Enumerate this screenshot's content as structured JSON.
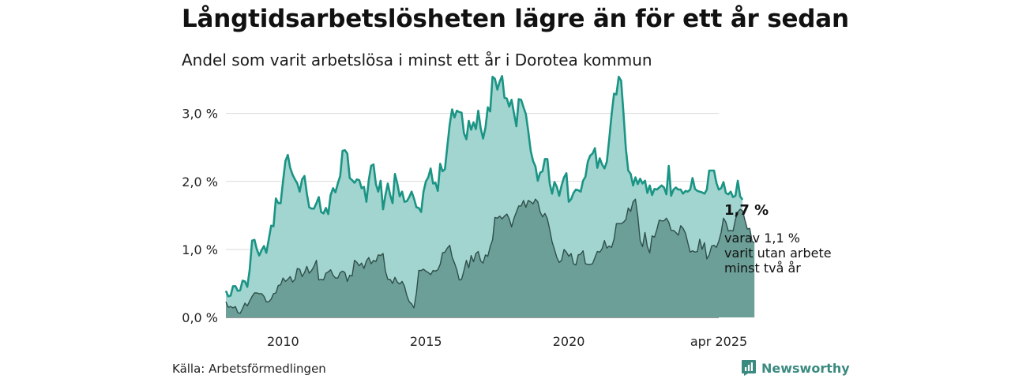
{
  "header": {
    "title": "Långtidsarbetslösheten lägre än för ett år sedan",
    "subtitle": "Andel som varit arbetslösa i minst ett år i Dorotea kommun"
  },
  "footer": {
    "source": "Källa: Arbetsförmedlingen",
    "brand": "Newsworthy",
    "brand_icon": "newsworthy-logo-icon"
  },
  "labels": {
    "latest_value": "1,7 %",
    "sub_line1": "varav 1,1 %",
    "sub_line2": "varit utan arbete",
    "sub_line3": "minst två år"
  },
  "colors": {
    "area_light": "#a3d5d0",
    "line_light": "#1a9484",
    "area_dark": "#6b9f97",
    "line_dark": "#2f4f4a",
    "grid": "#d9d9d9",
    "brand": "#3b8a80"
  },
  "chart_data": {
    "type": "area",
    "x_start": "2008-01",
    "x_end": "2025-04",
    "x_frequency": "monthly",
    "ylim": [
      0,
      3.6
    ],
    "yticks": [
      0,
      1,
      2,
      3
    ],
    "ytick_labels": [
      "0,0 %",
      "1,0 %",
      "2,0 %",
      "3,0 %"
    ],
    "xticks": [
      "2010",
      "2015",
      "2020",
      "apr 2025"
    ],
    "xtick_dates": [
      "2010-01",
      "2015-01",
      "2020-01",
      "2025-04"
    ],
    "grid": true,
    "series": [
      {
        "id": "minst-ett-ar",
        "values": [
          0.39,
          0.31,
          0.32,
          0.46,
          0.46,
          0.39,
          0.4,
          0.54,
          0.53,
          0.45,
          0.7,
          1.13,
          1.14,
          1.0,
          0.91,
          0.99,
          1.05,
          0.95,
          1.15,
          1.35,
          1.34,
          1.75,
          1.68,
          1.68,
          2.0,
          2.3,
          2.39,
          2.2,
          2.1,
          2.03,
          1.97,
          1.85,
          2.03,
          2.08,
          1.82,
          1.62,
          1.6,
          1.6,
          1.68,
          1.77,
          1.55,
          1.53,
          1.61,
          1.52,
          1.8,
          1.9,
          1.84,
          1.97,
          2.08,
          2.45,
          2.46,
          2.41,
          2.05,
          2.02,
          1.98,
          2.03,
          2.02,
          1.9,
          1.92,
          1.7,
          2.02,
          2.23,
          2.25,
          1.96,
          1.85,
          2.01,
          1.59,
          1.8,
          1.97,
          1.8,
          1.68,
          2.11,
          1.97,
          1.78,
          1.85,
          1.7,
          1.71,
          1.77,
          1.85,
          1.75,
          1.62,
          1.61,
          1.55,
          1.85,
          2.0,
          2.06,
          2.19,
          1.97,
          1.98,
          1.86,
          2.26,
          2.15,
          2.18,
          2.51,
          2.84,
          3.06,
          2.94,
          3.04,
          3.02,
          3.01,
          2.71,
          2.62,
          2.89,
          2.76,
          2.87,
          2.77,
          3.04,
          2.78,
          2.63,
          2.79,
          3.09,
          3.03,
          3.54,
          3.51,
          3.35,
          3.47,
          3.55,
          3.23,
          3.22,
          3.1,
          3.2,
          3.0,
          2.81,
          3.21,
          3.2,
          3.09,
          2.99,
          2.74,
          2.45,
          2.3,
          2.22,
          2.01,
          2.13,
          2.15,
          2.33,
          2.33,
          1.97,
          1.82,
          1.99,
          1.92,
          1.79,
          1.94,
          2.06,
          2.12,
          1.7,
          1.74,
          1.83,
          1.88,
          1.87,
          1.85,
          2.01,
          2.07,
          2.29,
          2.38,
          2.41,
          2.49,
          2.2,
          2.34,
          2.25,
          2.19,
          2.29,
          2.62,
          2.98,
          3.29,
          3.28,
          3.54,
          3.48,
          3.0,
          2.48,
          2.16,
          2.11,
          1.94,
          2.06,
          1.96,
          2.04,
          1.97,
          2.01,
          1.83,
          1.94,
          1.8,
          1.89,
          1.88,
          1.91,
          1.94,
          1.91,
          1.81,
          2.23,
          1.79,
          1.88,
          1.91,
          1.88,
          1.88,
          1.82,
          1.86,
          1.85,
          1.88,
          2.05,
          1.89,
          1.86,
          1.85,
          1.84,
          1.82,
          1.88,
          2.16,
          2.16,
          2.16,
          1.98,
          1.88,
          1.9,
          1.99,
          1.83,
          1.81,
          1.85,
          1.77,
          1.79,
          2.01,
          1.78,
          1.73
        ]
      },
      {
        "id": "minst-tva-ar",
        "values": [
          0.23,
          0.15,
          0.16,
          0.14,
          0.16,
          0.07,
          0.06,
          0.13,
          0.21,
          0.17,
          0.24,
          0.31,
          0.36,
          0.36,
          0.35,
          0.35,
          0.31,
          0.23,
          0.23,
          0.27,
          0.35,
          0.36,
          0.47,
          0.48,
          0.58,
          0.53,
          0.56,
          0.6,
          0.52,
          0.56,
          0.72,
          0.71,
          0.6,
          0.66,
          0.75,
          0.65,
          0.69,
          0.75,
          0.84,
          0.55,
          0.56,
          0.55,
          0.65,
          0.67,
          0.7,
          0.62,
          0.58,
          0.58,
          0.66,
          0.68,
          0.66,
          0.53,
          0.62,
          0.61,
          0.84,
          0.81,
          0.76,
          0.8,
          0.72,
          0.83,
          0.88,
          0.79,
          0.84,
          0.82,
          0.92,
          0.91,
          0.94,
          0.68,
          0.56,
          0.56,
          0.5,
          0.59,
          0.52,
          0.49,
          0.53,
          0.46,
          0.32,
          0.23,
          0.2,
          0.14,
          0.36,
          0.69,
          0.69,
          0.71,
          0.68,
          0.66,
          0.63,
          0.69,
          0.68,
          0.7,
          0.78,
          0.95,
          0.96,
          1.02,
          1.06,
          0.89,
          0.8,
          0.7,
          0.55,
          0.56,
          0.69,
          0.84,
          0.73,
          0.91,
          0.82,
          0.94,
          0.97,
          0.83,
          0.8,
          0.92,
          0.9,
          1.04,
          1.14,
          1.47,
          1.46,
          1.49,
          1.45,
          1.49,
          1.52,
          1.45,
          1.33,
          1.46,
          1.55,
          1.64,
          1.64,
          1.72,
          1.62,
          1.72,
          1.7,
          1.67,
          1.74,
          1.7,
          1.55,
          1.48,
          1.53,
          1.45,
          1.29,
          1.11,
          1.0,
          0.88,
          0.81,
          0.84,
          1.0,
          0.96,
          0.9,
          0.94,
          0.79,
          0.77,
          0.92,
          0.93,
          0.98,
          0.79,
          0.78,
          0.78,
          0.79,
          0.88,
          0.97,
          0.96,
          1.01,
          1.13,
          1.02,
          1.05,
          1.03,
          1.15,
          1.38,
          1.38,
          1.38,
          1.4,
          1.44,
          1.61,
          1.56,
          1.7,
          1.74,
          1.49,
          1.13,
          1.04,
          1.25,
          1.04,
          0.95,
          1.2,
          1.18,
          1.29,
          1.43,
          1.42,
          1.42,
          1.46,
          1.4,
          1.28,
          1.28,
          1.25,
          1.21,
          1.35,
          1.31,
          1.24,
          1.1,
          0.96,
          0.98,
          0.96,
          0.97,
          1.15,
          1.0,
          1.1,
          0.86,
          0.92,
          1.05,
          1.06,
          1.03,
          1.12,
          1.25,
          1.46,
          1.4,
          1.27,
          1.28,
          1.27,
          1.44,
          1.55,
          1.59,
          1.57,
          1.43,
          1.3,
          1.31,
          1.12,
          1.1
        ]
      }
    ]
  }
}
